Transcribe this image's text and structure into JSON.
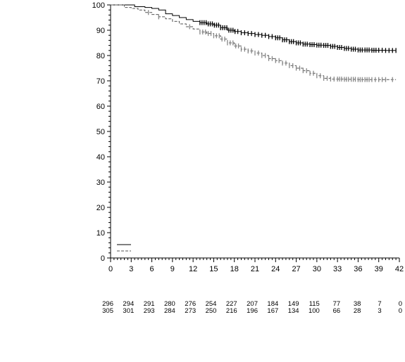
{
  "chart_data": {
    "type": "line",
    "title": "",
    "xlabel": "",
    "ylabel": "",
    "xlim": [
      0,
      42
    ],
    "ylim": [
      0,
      100
    ],
    "x_ticks": [
      0,
      3,
      6,
      9,
      12,
      15,
      18,
      21,
      24,
      27,
      30,
      33,
      36,
      39,
      42
    ],
    "x_tick_labels": [
      "0",
      "3",
      "6",
      "9",
      "12",
      "15",
      "18",
      "21",
      "24",
      "27",
      "30",
      "33",
      "36",
      "39",
      "42"
    ],
    "y_ticks": [
      0,
      10,
      20,
      30,
      40,
      50,
      60,
      70,
      80,
      90,
      100
    ],
    "y_tick_labels": [
      "0",
      "10",
      "20",
      "30",
      "40",
      "50",
      "60",
      "70",
      "80",
      "90",
      "100"
    ],
    "grid": false,
    "legend_placement": "bottom-left",
    "series": [
      {
        "style": "solid",
        "color": "#000000",
        "points": [
          [
            0,
            100
          ],
          [
            2,
            100
          ],
          [
            3.5,
            99.3
          ],
          [
            5,
            99
          ],
          [
            6,
            98.6
          ],
          [
            7,
            98
          ],
          [
            8,
            96.5
          ],
          [
            9,
            95.8
          ],
          [
            10,
            95
          ],
          [
            11,
            94.2
          ],
          [
            12,
            93.5
          ],
          [
            13,
            93
          ],
          [
            14,
            92.5
          ],
          [
            15,
            92
          ],
          [
            16,
            91
          ],
          [
            17,
            90
          ],
          [
            18,
            89.5
          ],
          [
            19,
            89
          ],
          [
            20,
            88.7
          ],
          [
            21,
            88.3
          ],
          [
            22,
            88
          ],
          [
            23,
            87.5
          ],
          [
            24,
            87
          ],
          [
            25,
            86.2
          ],
          [
            26,
            85.5
          ],
          [
            27,
            85
          ],
          [
            28,
            84.5
          ],
          [
            29,
            84.3
          ],
          [
            30,
            84.1
          ],
          [
            31,
            84
          ],
          [
            32,
            83.6
          ],
          [
            33,
            83.2
          ],
          [
            34,
            82.8
          ],
          [
            35,
            82.5
          ],
          [
            36,
            82.2
          ],
          [
            38,
            82.1
          ],
          [
            40,
            82
          ],
          [
            41.5,
            82
          ]
        ],
        "censor_x": [
          13,
          13.3,
          13.6,
          13.9,
          14.2,
          14.5,
          14.8,
          15.1,
          15.4,
          15.7,
          16,
          16.3,
          16.6,
          16.9,
          17.2,
          17.5,
          17.8,
          18.1,
          18.5,
          19,
          19.5,
          20,
          20.5,
          21,
          21.5,
          22,
          22.5,
          23,
          23.5,
          24,
          24.3,
          24.6,
          25,
          25.3,
          25.6,
          26,
          26.3,
          26.6,
          27,
          27.3,
          27.6,
          28,
          28.3,
          28.6,
          29,
          29.3,
          29.6,
          30,
          30.3,
          30.6,
          31,
          31.3,
          31.6,
          32,
          32.3,
          32.6,
          33,
          33.3,
          33.6,
          34,
          34.3,
          34.6,
          35,
          35.3,
          35.6,
          36,
          36.3,
          36.6,
          37,
          37.3,
          37.6,
          38,
          38.3,
          38.6,
          39,
          39.5,
          40,
          40.5,
          41,
          41.5
        ]
      },
      {
        "style": "dashed",
        "color": "#555555",
        "censor_color": "#888888",
        "points": [
          [
            0,
            100
          ],
          [
            2,
            99
          ],
          [
            3,
            98.6
          ],
          [
            4,
            98
          ],
          [
            5,
            97
          ],
          [
            6,
            96.2
          ],
          [
            7,
            95.3
          ],
          [
            8,
            94.5
          ],
          [
            9,
            93.5
          ],
          [
            10,
            92.5
          ],
          [
            11,
            91.4
          ],
          [
            12,
            90.5
          ],
          [
            13,
            89.3
          ],
          [
            14,
            88.7
          ],
          [
            15,
            87.8
          ],
          [
            16,
            86.5
          ],
          [
            17,
            85
          ],
          [
            18,
            83.8
          ],
          [
            19,
            82.5
          ],
          [
            20,
            81.8
          ],
          [
            21,
            81
          ],
          [
            22,
            80
          ],
          [
            23,
            78.8
          ],
          [
            24,
            78
          ],
          [
            25,
            77
          ],
          [
            26,
            76
          ],
          [
            27,
            75
          ],
          [
            28,
            74
          ],
          [
            29,
            73
          ],
          [
            30,
            72
          ],
          [
            31,
            71
          ],
          [
            32,
            70.7
          ],
          [
            34,
            70.6
          ],
          [
            36,
            70.5
          ],
          [
            38,
            70.5
          ],
          [
            41.5,
            70.5
          ]
        ],
        "censor_x": [
          5.5,
          7,
          11.5,
          13,
          13.4,
          13.8,
          14.2,
          14.6,
          15,
          15.4,
          15.8,
          16.2,
          16.6,
          17,
          17.4,
          17.8,
          18.2,
          18.6,
          19,
          19.5,
          20,
          20.5,
          21,
          21.5,
          22,
          22.5,
          23,
          23.5,
          24,
          24.5,
          25,
          25.5,
          26,
          26.5,
          27,
          27.5,
          28,
          28.5,
          29,
          29.5,
          30,
          30.5,
          31,
          31.5,
          32,
          32.5,
          33,
          33.3,
          33.6,
          34,
          34.3,
          34.6,
          35,
          35.3,
          35.6,
          36,
          36.3,
          36.6,
          37,
          37.3,
          37.6,
          38,
          38.5,
          39,
          39.5,
          40,
          41
        ]
      }
    ],
    "at_risk_rows": [
      [
        "296",
        "294",
        "291",
        "280",
        "276",
        "254",
        "227",
        "207",
        "184",
        "149",
        "115",
        "77",
        "38",
        "7",
        "0"
      ],
      [
        "305",
        "301",
        "293",
        "284",
        "273",
        "250",
        "216",
        "196",
        "167",
        "134",
        "100",
        "66",
        "28",
        "3",
        "0"
      ]
    ]
  }
}
